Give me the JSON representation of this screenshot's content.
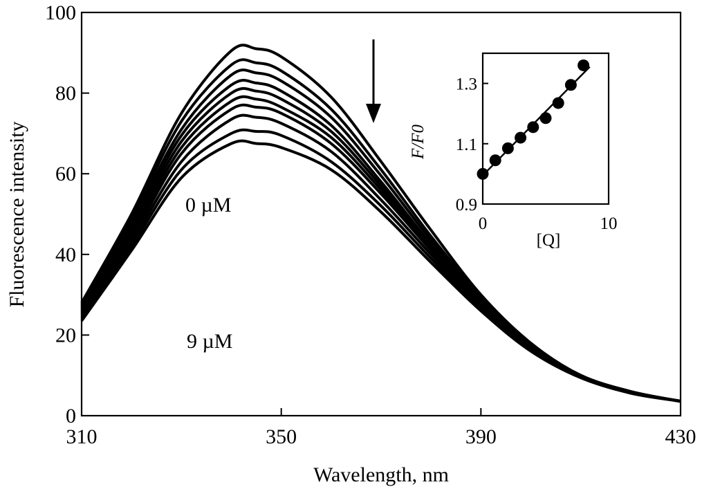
{
  "chart_data": [
    {
      "type": "line",
      "title": "",
      "xlabel": "Wavelength, nm",
      "ylabel": "Fluorescence intensity",
      "xlim": [
        310,
        430
      ],
      "ylim": [
        0,
        100
      ],
      "xticks": [
        "310",
        "350",
        "390",
        "430"
      ],
      "yticks": [
        "0",
        "20",
        "40",
        "60",
        "80",
        "100"
      ],
      "grid": false,
      "legend": "none",
      "annotations": {
        "top_curve": "0 µM",
        "bottom_curve": "9 µM"
      },
      "x": [
        310,
        320,
        330,
        340,
        345,
        350,
        360,
        370,
        380,
        390,
        400,
        410,
        420,
        430
      ],
      "series": [
        {
          "values": [
            28,
            50,
            75,
            90.5,
            91,
            89,
            79,
            63,
            46,
            30,
            18,
            10,
            6,
            3.5
          ]
        },
        {
          "values": [
            27.5,
            49,
            73,
            87,
            87.5,
            85.5,
            76,
            61,
            44.5,
            29.5,
            17.5,
            10,
            6,
            3.6
          ]
        },
        {
          "values": [
            27,
            48,
            71,
            84.5,
            85,
            83,
            74,
            59.5,
            43.5,
            29,
            17.5,
            10,
            6,
            3.6
          ]
        },
        {
          "values": [
            26.5,
            47,
            69.5,
            82,
            82.5,
            80.5,
            72,
            58,
            42.5,
            28.5,
            17,
            9.8,
            5.8,
            3.6
          ]
        },
        {
          "values": [
            26,
            46,
            68,
            80,
            80.5,
            78.5,
            70.5,
            57,
            42,
            28,
            17,
            9.8,
            5.8,
            3.6
          ]
        },
        {
          "values": [
            25.5,
            45,
            66.5,
            78,
            78.5,
            76.5,
            69,
            56,
            41.5,
            28,
            17,
            9.8,
            5.8,
            3.6
          ]
        },
        {
          "values": [
            25,
            44,
            65,
            76,
            76.5,
            75,
            67.5,
            55,
            41,
            27.5,
            16.8,
            9.7,
            5.7,
            3.6
          ]
        },
        {
          "values": [
            24.5,
            43,
            63,
            73.5,
            74,
            72.5,
            65.5,
            53.5,
            40,
            27,
            16.5,
            9.6,
            5.7,
            3.6
          ]
        },
        {
          "values": [
            24,
            42,
            61,
            70,
            70.5,
            69.5,
            63,
            52,
            39,
            26.5,
            16.2,
            9.5,
            5.6,
            3.6
          ]
        },
        {
          "values": [
            23.5,
            41,
            59,
            67.5,
            67.5,
            66.5,
            61,
            50.5,
            38,
            26,
            16,
            9.4,
            5.6,
            3.6
          ]
        }
      ]
    },
    {
      "type": "scatter",
      "title": "",
      "xlabel": "[Q]",
      "ylabel": "F/F0",
      "xlim": [
        0,
        10
      ],
      "ylim": [
        0.9,
        1.4
      ],
      "xticks": [
        "0",
        "10"
      ],
      "yticks": [
        "0.9",
        "1.1",
        "1.3"
      ],
      "grid": false,
      "legend": "none",
      "x": [
        0,
        1,
        2,
        3,
        4,
        5,
        6,
        7,
        8
      ],
      "values": [
        1.0,
        1.045,
        1.085,
        1.12,
        1.155,
        1.185,
        1.235,
        1.295,
        1.36
      ],
      "fit_line": {
        "x": [
          0,
          8.5
        ],
        "y": [
          0.995,
          1.355
        ]
      }
    }
  ]
}
